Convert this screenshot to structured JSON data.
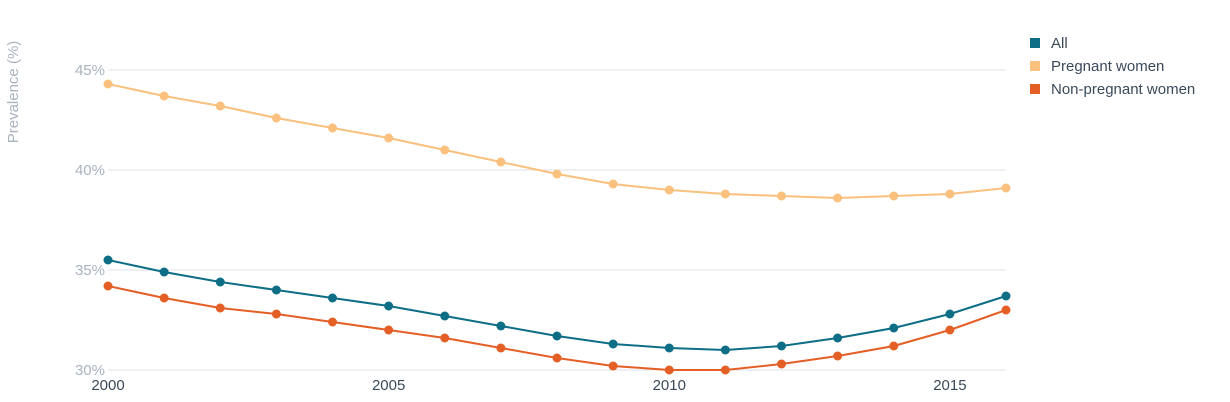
{
  "chart_data": {
    "type": "line",
    "ylabel": "Prevalence (%)",
    "xlabel": "",
    "x": [
      2000,
      2001,
      2002,
      2003,
      2004,
      2005,
      2006,
      2007,
      2008,
      2009,
      2010,
      2011,
      2012,
      2013,
      2014,
      2015,
      2016
    ],
    "xlim": [
      2000,
      2016
    ],
    "ylim": [
      30,
      47
    ],
    "x_ticks": [
      2000,
      2005,
      2010,
      2015
    ],
    "y_ticks": [
      30,
      35,
      40,
      45
    ],
    "y_tick_labels": [
      "30%",
      "35%",
      "40%",
      "45%"
    ],
    "grid": true,
    "legend_position": "top-right",
    "series": [
      {
        "name": "All",
        "color": "#0d6e86",
        "values": [
          35.5,
          34.9,
          34.4,
          34.0,
          33.6,
          33.2,
          32.7,
          32.2,
          31.7,
          31.3,
          31.1,
          31.0,
          31.2,
          31.6,
          32.1,
          32.8,
          33.7
        ]
      },
      {
        "name": "Pregnant women",
        "color": "#f9c07e",
        "values": [
          44.3,
          43.7,
          43.2,
          42.6,
          42.1,
          41.6,
          41.0,
          40.4,
          39.8,
          39.3,
          39.0,
          38.8,
          38.7,
          38.6,
          38.7,
          38.8,
          39.1
        ]
      },
      {
        "name": "Non-pregnant women",
        "color": "#e45f26",
        "values": [
          34.2,
          33.6,
          33.1,
          32.8,
          32.4,
          32.0,
          31.6,
          31.1,
          30.6,
          30.2,
          30.0,
          30.0,
          30.3,
          30.7,
          31.2,
          32.0,
          33.0
        ]
      }
    ]
  }
}
